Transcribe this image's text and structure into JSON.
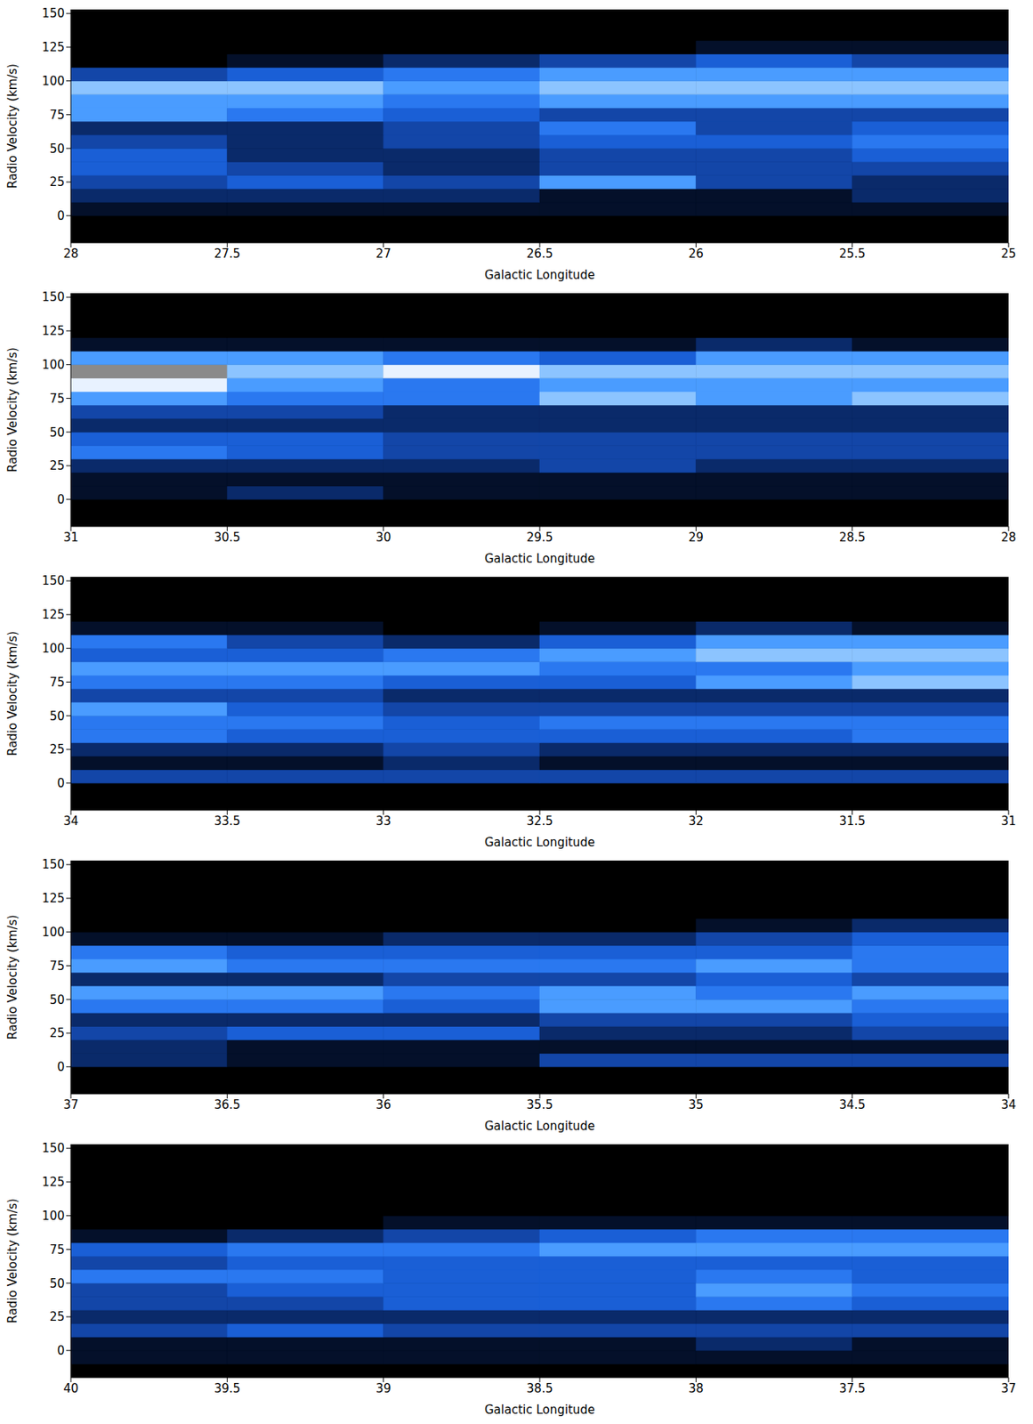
{
  "chart_data": [
    {
      "type": "heatmap",
      "x_label": "Galactic Longitude",
      "y_label": "Radio Velocity (km/s)",
      "xlim": [
        28,
        25
      ],
      "ylim": [
        -20,
        153
      ],
      "xticks": [
        28,
        27.5,
        27,
        26.5,
        26,
        25.5,
        25
      ],
      "yticks": [
        0,
        25,
        50,
        75,
        100,
        125,
        150
      ],
      "x_edges": [
        28,
        27.5,
        27,
        26.5,
        26,
        25.5,
        25
      ],
      "y_edges": [
        -20,
        -10,
        0,
        10,
        20,
        30,
        40,
        50,
        60,
        70,
        80,
        90,
        100,
        110,
        120,
        130,
        140,
        150
      ],
      "cells": [
        [
          0,
          0,
          0,
          0,
          0,
          0
        ],
        [
          0,
          0,
          0,
          0,
          0,
          0
        ],
        [
          1,
          1,
          1,
          1,
          1,
          1
        ],
        [
          2,
          2,
          2,
          1,
          1,
          2
        ],
        [
          3,
          4,
          3,
          6,
          3,
          2
        ],
        [
          4,
          3,
          2,
          3,
          3,
          3
        ],
        [
          4,
          2,
          2,
          3,
          3,
          4
        ],
        [
          3,
          2,
          3,
          4,
          4,
          5
        ],
        [
          2,
          2,
          3,
          5,
          3,
          4
        ],
        [
          6,
          5,
          4,
          3,
          3,
          3
        ],
        [
          6,
          6,
          5,
          6,
          6,
          6
        ],
        [
          7,
          7,
          6,
          7,
          7,
          7
        ],
        [
          3,
          4,
          5,
          6,
          6,
          6
        ],
        [
          0,
          1,
          2,
          3,
          4,
          3
        ],
        [
          0,
          0,
          0,
          0,
          1,
          1
        ],
        [
          0,
          0,
          0,
          0,
          0,
          0
        ],
        [
          0,
          0,
          0,
          0,
          0,
          0
        ]
      ]
    },
    {
      "type": "heatmap",
      "x_label": "Galactic Longitude",
      "y_label": "Radio Velocity (km/s)",
      "xlim": [
        31,
        28
      ],
      "ylim": [
        -20,
        153
      ],
      "xticks": [
        31,
        30.5,
        30,
        29.5,
        29,
        28.5,
        28
      ],
      "yticks": [
        0,
        25,
        50,
        75,
        100,
        125,
        150
      ],
      "x_edges": [
        31,
        30.5,
        30,
        29.5,
        29,
        28.5,
        28
      ],
      "y_edges": [
        -20,
        -10,
        0,
        10,
        20,
        30,
        40,
        50,
        60,
        70,
        80,
        90,
        100,
        110,
        120,
        130,
        140,
        150
      ],
      "cells": [
        [
          0,
          0,
          0,
          0,
          0,
          0
        ],
        [
          0,
          0,
          0,
          0,
          0,
          0
        ],
        [
          1,
          2,
          1,
          1,
          1,
          1
        ],
        [
          1,
          1,
          1,
          1,
          1,
          1
        ],
        [
          2,
          2,
          2,
          3,
          2,
          2
        ],
        [
          5,
          4,
          3,
          3,
          3,
          3
        ],
        [
          4,
          4,
          3,
          3,
          3,
          3
        ],
        [
          2,
          2,
          2,
          2,
          2,
          2
        ],
        [
          3,
          3,
          2,
          2,
          2,
          2
        ],
        [
          6,
          5,
          5,
          7,
          6,
          7
        ],
        [
          8,
          6,
          5,
          6,
          6,
          6
        ],
        [
          9,
          7,
          8,
          7,
          7,
          7
        ],
        [
          6,
          6,
          5,
          4,
          6,
          6
        ],
        [
          1,
          1,
          1,
          1,
          2,
          1
        ],
        [
          0,
          0,
          0,
          0,
          0,
          0
        ],
        [
          0,
          0,
          0,
          0,
          0,
          0
        ],
        [
          0,
          0,
          0,
          0,
          0,
          0
        ]
      ]
    },
    {
      "type": "heatmap",
      "x_label": "Galactic Longitude",
      "y_label": "Radio Velocity (km/s)",
      "xlim": [
        34,
        31
      ],
      "ylim": [
        -20,
        153
      ],
      "xticks": [
        34,
        33.5,
        33,
        32.5,
        32,
        31.5,
        31
      ],
      "yticks": [
        0,
        25,
        50,
        75,
        100,
        125,
        150
      ],
      "x_edges": [
        34,
        33.5,
        33,
        32.5,
        32,
        31.5,
        31
      ],
      "y_edges": [
        -20,
        -10,
        0,
        10,
        20,
        30,
        40,
        50,
        60,
        70,
        80,
        90,
        100,
        110,
        120,
        130,
        140,
        150
      ],
      "cells": [
        [
          0,
          0,
          0,
          0,
          0,
          0
        ],
        [
          0,
          0,
          0,
          0,
          0,
          0
        ],
        [
          3,
          3,
          3,
          3,
          3,
          3
        ],
        [
          1,
          1,
          2,
          1,
          1,
          1
        ],
        [
          2,
          2,
          3,
          2,
          2,
          2
        ],
        [
          5,
          4,
          4,
          4,
          4,
          5
        ],
        [
          5,
          5,
          4,
          5,
          5,
          5
        ],
        [
          6,
          4,
          3,
          3,
          3,
          3
        ],
        [
          3,
          3,
          2,
          2,
          2,
          2
        ],
        [
          5,
          5,
          4,
          4,
          6,
          7
        ],
        [
          6,
          6,
          6,
          5,
          5,
          6
        ],
        [
          4,
          4,
          5,
          6,
          7,
          7
        ],
        [
          5,
          3,
          2,
          4,
          6,
          6
        ],
        [
          1,
          1,
          0,
          1,
          2,
          1
        ],
        [
          0,
          0,
          0,
          0,
          0,
          0
        ],
        [
          0,
          0,
          0,
          0,
          0,
          0
        ],
        [
          0,
          0,
          0,
          0,
          0,
          0
        ]
      ]
    },
    {
      "type": "heatmap",
      "x_label": "Galactic Longitude",
      "y_label": "Radio Velocity (km/s)",
      "xlim": [
        37,
        34
      ],
      "ylim": [
        -20,
        153
      ],
      "xticks": [
        37,
        36.5,
        36,
        35.5,
        35,
        34.5,
        34
      ],
      "yticks": [
        0,
        25,
        50,
        75,
        100,
        125,
        150
      ],
      "x_edges": [
        37,
        36.5,
        36,
        35.5,
        35,
        34.5,
        34
      ],
      "y_edges": [
        -20,
        -10,
        0,
        10,
        20,
        30,
        40,
        50,
        60,
        70,
        80,
        90,
        100,
        110,
        120,
        130,
        140,
        150
      ],
      "cells": [
        [
          0,
          0,
          0,
          0,
          0,
          0
        ],
        [
          0,
          0,
          0,
          0,
          0,
          0
        ],
        [
          2,
          1,
          1,
          3,
          3,
          3
        ],
        [
          2,
          1,
          1,
          1,
          1,
          1
        ],
        [
          3,
          4,
          4,
          2,
          2,
          3
        ],
        [
          2,
          2,
          2,
          3,
          3,
          4
        ],
        [
          5,
          5,
          4,
          6,
          6,
          5
        ],
        [
          6,
          6,
          5,
          6,
          5,
          6
        ],
        [
          2,
          2,
          3,
          3,
          4,
          3
        ],
        [
          6,
          5,
          5,
          5,
          6,
          5
        ],
        [
          5,
          4,
          4,
          4,
          4,
          5
        ],
        [
          1,
          1,
          2,
          2,
          3,
          4
        ],
        [
          0,
          0,
          0,
          0,
          1,
          2
        ],
        [
          0,
          0,
          0,
          0,
          0,
          0
        ],
        [
          0,
          0,
          0,
          0,
          0,
          0
        ],
        [
          0,
          0,
          0,
          0,
          0,
          0
        ],
        [
          0,
          0,
          0,
          0,
          0,
          0
        ]
      ]
    },
    {
      "type": "heatmap",
      "x_label": "Galactic Longitude",
      "y_label": "Radio Velocity (km/s)",
      "xlim": [
        40,
        37
      ],
      "ylim": [
        -20,
        153
      ],
      "xticks": [
        40,
        39.5,
        39,
        38.5,
        38,
        37.5,
        37
      ],
      "yticks": [
        0,
        25,
        50,
        75,
        100,
        125,
        150
      ],
      "x_edges": [
        40,
        39.5,
        39,
        38.5,
        38,
        37.5,
        37
      ],
      "y_edges": [
        -20,
        -10,
        0,
        10,
        20,
        30,
        40,
        50,
        60,
        70,
        80,
        90,
        100,
        110,
        120,
        130,
        140,
        150
      ],
      "cells": [
        [
          0,
          0,
          0,
          0,
          0,
          0
        ],
        [
          1,
          1,
          1,
          1,
          1,
          1
        ],
        [
          1,
          1,
          1,
          1,
          2,
          1
        ],
        [
          3,
          4,
          3,
          3,
          3,
          3
        ],
        [
          2,
          2,
          2,
          2,
          2,
          2
        ],
        [
          3,
          3,
          4,
          4,
          5,
          4
        ],
        [
          3,
          4,
          4,
          4,
          6,
          5
        ],
        [
          5,
          5,
          4,
          4,
          5,
          4
        ],
        [
          3,
          4,
          4,
          4,
          4,
          4
        ],
        [
          4,
          5,
          5,
          6,
          6,
          6
        ],
        [
          1,
          2,
          3,
          4,
          5,
          5
        ],
        [
          0,
          0,
          1,
          1,
          1,
          1
        ],
        [
          0,
          0,
          0,
          0,
          0,
          0
        ],
        [
          0,
          0,
          0,
          0,
          0,
          0
        ],
        [
          0,
          0,
          0,
          0,
          0,
          0
        ],
        [
          0,
          0,
          0,
          0,
          0,
          0
        ],
        [
          0,
          0,
          0,
          0,
          0,
          0
        ]
      ]
    }
  ]
}
